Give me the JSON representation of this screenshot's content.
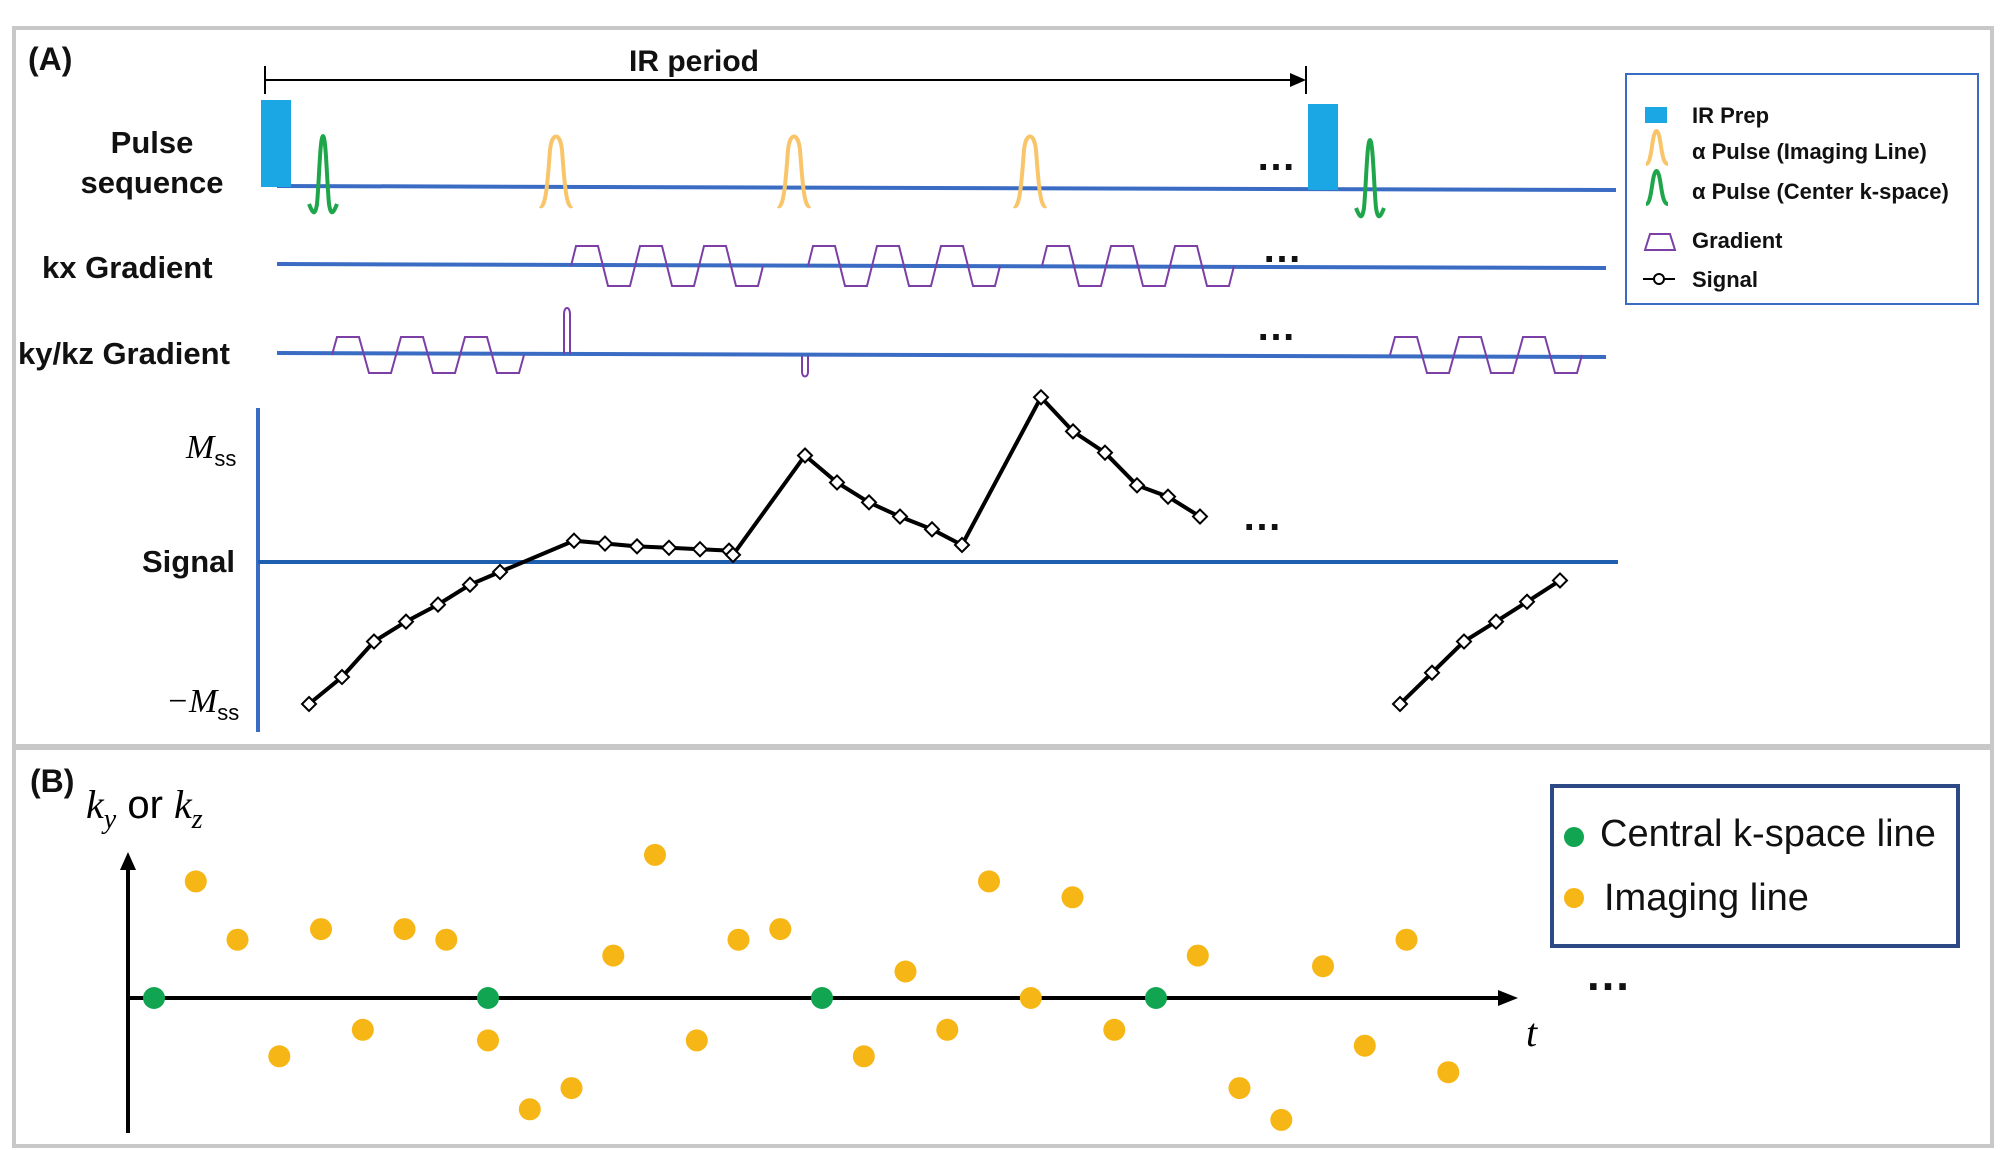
{
  "colors": {
    "ir_prep": "#1aa7e3",
    "imaging_pulse": "#f9c56a",
    "center_pulse": "#1fa64a",
    "gradient": "#7b3fa6",
    "baseline": "#3a6cc4",
    "panel_border": "#c8c8c8",
    "imaging_dot": "#f6b615",
    "central_dot": "#12a551",
    "legend_border_b": "#2e4a86",
    "legend_border_a": "#3a6cc4"
  },
  "panel_a": {
    "label": "(A)",
    "ir_period": "IR period",
    "rows": {
      "pulse_line1": "Pulse",
      "pulse_line2": "sequence",
      "kx": "kx Gradient",
      "kykz": "ky/kz Gradient",
      "signal": "Signal"
    },
    "axis": {
      "mss_sym": "M",
      "mss_sub": "ss",
      "neg_sym": "−M",
      "neg_sub": "ss"
    },
    "ellipsis": "…",
    "legend": {
      "ir_prep": "IR Prep",
      "alpha_imaging": "α Pulse (Imaging Line)",
      "alpha_center": "α Pulse (Center k-space)",
      "gradient": "Gradient",
      "signal": "Signal"
    },
    "signal_points": [
      [
        -1.0,
        0
      ],
      [
        -0.81,
        0
      ],
      [
        -0.56,
        0
      ],
      [
        -0.42,
        0
      ],
      [
        -0.3,
        0
      ],
      [
        -0.16,
        0
      ],
      [
        -0.07,
        0
      ],
      [
        0.15,
        1
      ],
      [
        0.13,
        1
      ],
      [
        0.11,
        1
      ],
      [
        0.1,
        1
      ],
      [
        0.09,
        1
      ],
      [
        0.08,
        1
      ],
      [
        0.05,
        1
      ],
      [
        0.75,
        1
      ],
      [
        0.56,
        1
      ],
      [
        0.42,
        1
      ],
      [
        0.32,
        1
      ],
      [
        0.23,
        1
      ],
      [
        0.12,
        1
      ],
      [
        1.16,
        1
      ],
      [
        0.92,
        1
      ],
      [
        0.77,
        1
      ],
      [
        0.54,
        1
      ],
      [
        0.46,
        1
      ],
      [
        0.32,
        1
      ],
      [
        -1.0,
        0
      ],
      [
        -0.78,
        0
      ],
      [
        -0.56,
        0
      ],
      [
        -0.42,
        0
      ],
      [
        -0.28,
        0
      ],
      [
        -0.13,
        0
      ]
    ]
  },
  "panel_b": {
    "label": "(B)",
    "y_axis_k1": "k",
    "y_axis_s1": "y",
    "y_axis_or": " or ",
    "y_axis_k2": "k",
    "y_axis_s2": "z",
    "x_axis": "t",
    "ellipsis": "…",
    "legend": {
      "central": "Central k-space line",
      "imaging": "Imaging line"
    },
    "central_t": [
      0.0,
      4.0,
      8.0,
      12.0
    ],
    "imaging_points": [
      [
        0.5,
        2.2
      ],
      [
        1.0,
        1.1
      ],
      [
        1.5,
        -1.1
      ],
      [
        2.0,
        1.3
      ],
      [
        2.5,
        -0.6
      ],
      [
        3.0,
        1.3
      ],
      [
        3.5,
        1.1
      ],
      [
        4.0,
        -0.8
      ],
      [
        4.5,
        -2.1
      ],
      [
        5.0,
        -1.7
      ],
      [
        5.5,
        0.8
      ],
      [
        6.0,
        2.7
      ],
      [
        6.5,
        -0.8
      ],
      [
        7.0,
        1.1
      ],
      [
        7.5,
        1.3
      ],
      [
        8.5,
        -1.1
      ],
      [
        9.0,
        0.5
      ],
      [
        9.5,
        -0.6
      ],
      [
        10.0,
        2.2
      ],
      [
        10.5,
        0.0
      ],
      [
        11.0,
        1.9
      ],
      [
        11.5,
        -0.6
      ],
      [
        12.5,
        0.8
      ],
      [
        13.0,
        -1.7
      ],
      [
        13.5,
        -2.3
      ],
      [
        14.0,
        0.6
      ],
      [
        14.5,
        -0.9
      ],
      [
        15.0,
        1.1
      ],
      [
        15.5,
        -1.4
      ]
    ]
  }
}
